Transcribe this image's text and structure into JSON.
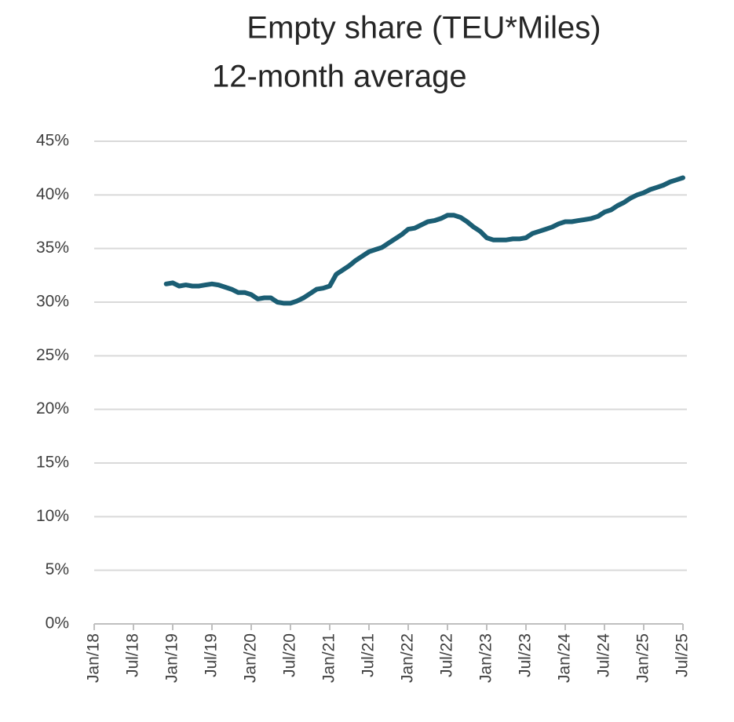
{
  "chart_data": {
    "type": "line",
    "title": "Empty share (TEU*Miles)",
    "subtitle": "12-month average",
    "categories": [
      "Jan/18",
      null,
      null,
      null,
      null,
      null,
      "Jul/18",
      null,
      null,
      null,
      null,
      null,
      "Jan/19",
      null,
      null,
      null,
      null,
      null,
      "Jul/19",
      null,
      null,
      null,
      null,
      null,
      "Jan/20",
      null,
      null,
      null,
      null,
      null,
      "Jul/20",
      null,
      null,
      null,
      null,
      null,
      "Jan/21",
      null,
      null,
      null,
      null,
      null,
      "Jul/21",
      null,
      null,
      null,
      null,
      null,
      "Jan/22",
      null,
      null,
      null,
      null,
      null,
      "Jul/22",
      null,
      null,
      null,
      null,
      null,
      "Jan/23",
      null,
      null,
      null,
      null,
      null,
      "Jul/23",
      null,
      null,
      null,
      null,
      null,
      "Jan/24",
      null,
      null,
      null,
      null,
      null,
      "Jul/24",
      null,
      null,
      null,
      null,
      null,
      "Jan/25",
      null,
      null,
      null,
      null,
      null,
      "Jul/25"
    ],
    "series": [
      {
        "name": "Empty share",
        "color": "#1b5e74",
        "values": [
          null,
          null,
          null,
          null,
          null,
          null,
          null,
          null,
          null,
          null,
          null,
          31.7,
          31.8,
          31.5,
          31.6,
          31.5,
          31.5,
          31.6,
          31.7,
          31.6,
          31.4,
          31.2,
          30.9,
          30.9,
          30.7,
          30.3,
          30.4,
          30.4,
          30.0,
          29.9,
          29.9,
          30.1,
          30.4,
          30.8,
          31.2,
          31.3,
          31.5,
          32.6,
          33.0,
          33.4,
          33.9,
          34.3,
          34.7,
          34.9,
          35.1,
          35.5,
          35.9,
          36.3,
          36.8,
          36.9,
          37.2,
          37.5,
          37.6,
          37.8,
          38.1,
          38.1,
          37.9,
          37.5,
          37.0,
          36.6,
          36.0,
          35.8,
          35.8,
          35.8,
          35.9,
          35.9,
          36.0,
          36.4,
          36.6,
          36.8,
          37.0,
          37.3,
          37.5,
          37.5,
          37.6,
          37.7,
          37.8,
          38.0,
          38.4,
          38.6,
          39.0,
          39.3,
          39.7,
          40.0,
          40.2,
          40.5,
          40.7,
          40.9,
          41.2,
          41.4,
          41.6
        ]
      }
    ],
    "ylim": [
      0,
      45
    ],
    "yticks": [
      {
        "value": 0,
        "label": "0%"
      },
      {
        "value": 5,
        "label": "5%"
      },
      {
        "value": 10,
        "label": "10%"
      },
      {
        "value": 15,
        "label": "15%"
      },
      {
        "value": 20,
        "label": "20%"
      },
      {
        "value": 25,
        "label": "25%"
      },
      {
        "value": 30,
        "label": "30%"
      },
      {
        "value": 35,
        "label": "35%"
      },
      {
        "value": 40,
        "label": "40%"
      },
      {
        "value": 45,
        "label": "45%"
      }
    ],
    "grid": true
  }
}
